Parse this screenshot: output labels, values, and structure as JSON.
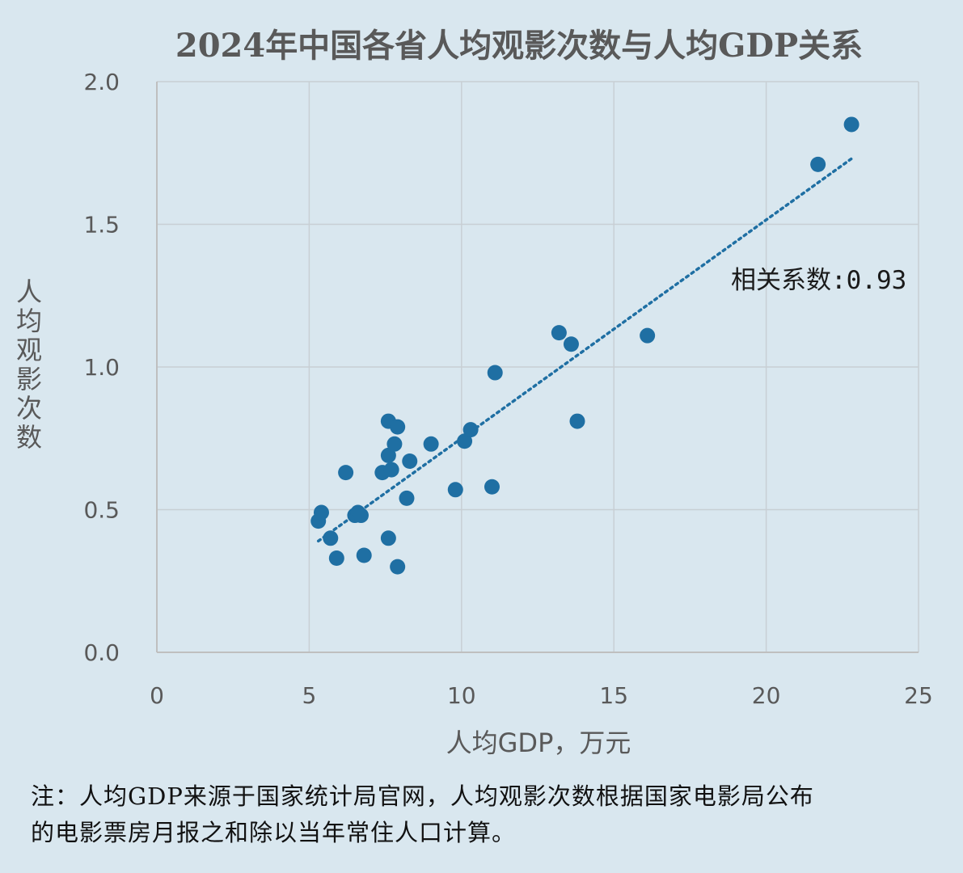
{
  "chart_data": {
    "type": "scatter",
    "title": "2024年中国各省人均观影次数与人均GDP关系",
    "xlabel": "人均GDP，万元",
    "ylabel": "人均观影次数",
    "xlim": [
      0,
      25
    ],
    "ylim": [
      0,
      2.0
    ],
    "xticks": [
      "0",
      "5",
      "10",
      "15",
      "20",
      "25"
    ],
    "yticks": [
      "0.0",
      "0.5",
      "1.0",
      "1.5",
      "2.0"
    ],
    "xtick_values": [
      0,
      5,
      10,
      15,
      20,
      25
    ],
    "ytick_values": [
      0,
      0.5,
      1.0,
      1.5,
      2.0
    ],
    "grid": true,
    "series": [
      {
        "color": "#1f6fa3",
        "points": [
          [
            5.3,
            0.46
          ],
          [
            5.4,
            0.49
          ],
          [
            5.7,
            0.4
          ],
          [
            5.9,
            0.33
          ],
          [
            6.2,
            0.63
          ],
          [
            6.5,
            0.48
          ],
          [
            6.6,
            0.49
          ],
          [
            6.7,
            0.48
          ],
          [
            6.8,
            0.34
          ],
          [
            7.4,
            0.63
          ],
          [
            7.6,
            0.4
          ],
          [
            7.6,
            0.69
          ],
          [
            7.7,
            0.64
          ],
          [
            7.6,
            0.81
          ],
          [
            7.8,
            0.73
          ],
          [
            7.9,
            0.79
          ],
          [
            7.9,
            0.3
          ],
          [
            8.2,
            0.54
          ],
          [
            8.3,
            0.67
          ],
          [
            9.0,
            0.73
          ],
          [
            9.8,
            0.57
          ],
          [
            10.1,
            0.74
          ],
          [
            10.3,
            0.78
          ],
          [
            11.0,
            0.58
          ],
          [
            11.1,
            0.98
          ],
          [
            13.2,
            1.12
          ],
          [
            13.6,
            1.08
          ],
          [
            13.8,
            0.81
          ],
          [
            16.1,
            1.11
          ],
          [
            21.7,
            1.71
          ],
          [
            22.8,
            1.85
          ]
        ]
      }
    ],
    "trendline": {
      "style": "dotted",
      "x1": 5.3,
      "y1": 0.39,
      "x2": 22.8,
      "y2": 1.73,
      "color": "#1f6fa3"
    },
    "annotation": {
      "text": "相关系数:0.93"
    }
  },
  "note": {
    "line1": "注：人均GDP来源于国家统计局官网，人均观影次数根据国家电影局公布",
    "line2": "的电影票房月报之和除以当年常住人口计算。"
  }
}
